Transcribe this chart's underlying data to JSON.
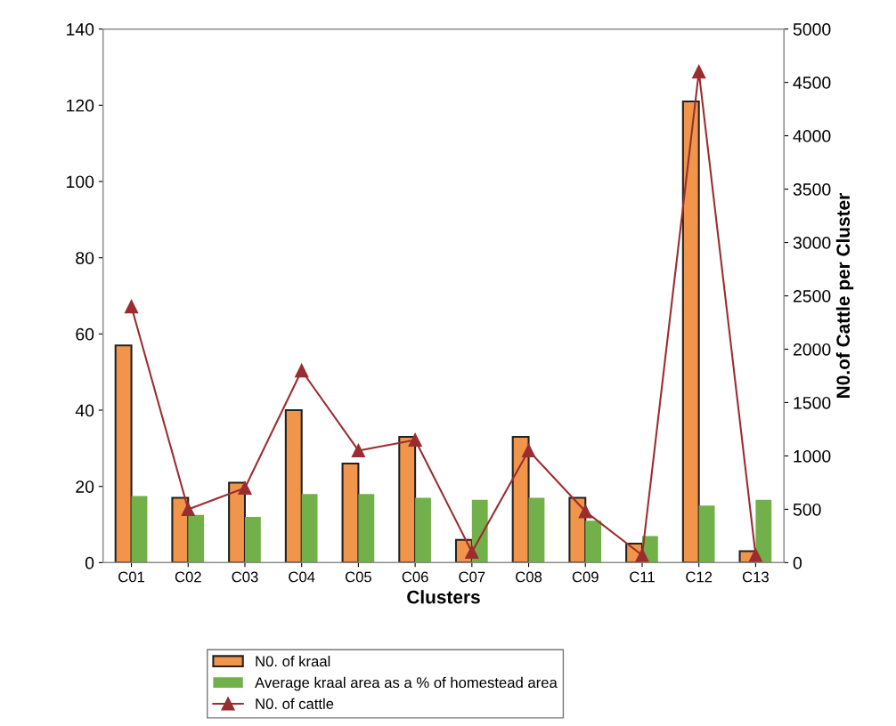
{
  "chart_data": {
    "type": "bar",
    "xlabel": "Clusters",
    "y2label": "N0.of Cattle per Cluster",
    "categories": [
      "C01",
      "C02",
      "C03",
      "C04",
      "C05",
      "C06",
      "C07",
      "C08",
      "C09",
      "C11",
      "C12",
      "C13"
    ],
    "series": [
      {
        "name": "N0. of kraal",
        "color": "#f0954a",
        "values": [
          57,
          17,
          21,
          40,
          26,
          33,
          6,
          33,
          17,
          5,
          121,
          3
        ]
      },
      {
        "name": "Average kraal area as a % of homestead area",
        "color": "#72b04a",
        "values": [
          17.5,
          12.5,
          12,
          18,
          18,
          17,
          16.5,
          17,
          11,
          7,
          15,
          16.5
        ]
      },
      {
        "name": "N0. of cattle",
        "color": "#9b2d30",
        "type": "line",
        "axis": "y2",
        "marker": "triangle",
        "line_style": "solid",
        "values": [
          2400,
          500,
          700,
          1800,
          1050,
          1150,
          100,
          1050,
          480,
          70,
          4600,
          70
        ]
      }
    ],
    "ylim": [
      0,
      140
    ],
    "yticks": [
      0,
      20,
      40,
      60,
      80,
      100,
      120,
      140
    ],
    "y2lim": [
      0,
      5000
    ],
    "y2ticks": [
      0,
      500,
      1000,
      1500,
      2000,
      2500,
      3000,
      3500,
      4000,
      4500,
      5000
    ],
    "grid": false,
    "legend": "bottom"
  }
}
